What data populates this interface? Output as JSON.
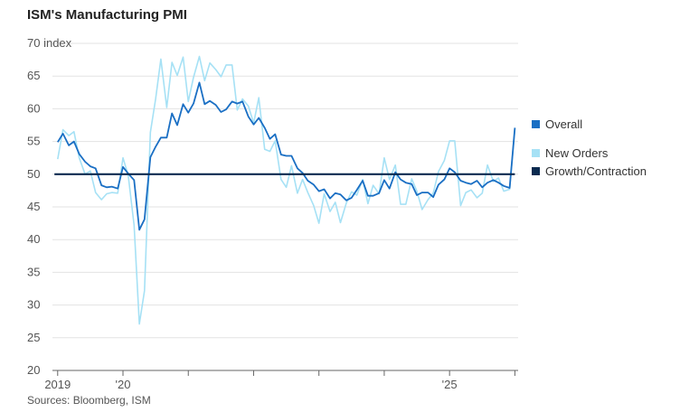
{
  "chart_data": {
    "type": "line",
    "title": "ISM's Manufacturing PMI",
    "source": "Sources: Bloomberg, ISM",
    "ylabel": "index",
    "ylim": [
      20,
      70
    ],
    "yticks": [
      20,
      25,
      30,
      35,
      40,
      45,
      50,
      55,
      60,
      65,
      70
    ],
    "xlim": [
      2018.92,
      2026.05
    ],
    "xticks": [
      {
        "x": 2019.0,
        "label": "2019"
      },
      {
        "x": 2020.0,
        "label": "'20"
      },
      {
        "x": 2021.0,
        "label": ""
      },
      {
        "x": 2022.0,
        "label": ""
      },
      {
        "x": 2023.0,
        "label": ""
      },
      {
        "x": 2024.0,
        "label": ""
      },
      {
        "x": 2025.0,
        "label": "'25"
      },
      {
        "x": 2026.0,
        "label": ""
      }
    ],
    "grid": true,
    "legend_position": "right",
    "series": [
      {
        "name": "New Orders",
        "color": "#a6e1f5",
        "x": [
          2019.0,
          2019.08,
          2019.17,
          2019.25,
          2019.33,
          2019.42,
          2019.5,
          2019.58,
          2019.67,
          2019.75,
          2019.83,
          2019.92,
          2020.0,
          2020.08,
          2020.17,
          2020.25,
          2020.33,
          2020.42,
          2020.5,
          2020.58,
          2020.67,
          2020.75,
          2020.83,
          2020.92,
          2021.0,
          2021.08,
          2021.17,
          2021.25,
          2021.33,
          2021.42,
          2021.5,
          2021.58,
          2021.67,
          2021.75,
          2021.83,
          2021.92,
          2022.0,
          2022.08,
          2022.17,
          2022.25,
          2022.33,
          2022.42,
          2022.5,
          2022.58,
          2022.67,
          2022.75,
          2022.83,
          2022.92,
          2023.0,
          2023.08,
          2023.17,
          2023.25,
          2023.33,
          2023.42,
          2023.5,
          2023.58,
          2023.67,
          2023.75,
          2023.83,
          2023.92,
          2024.0,
          2024.08,
          2024.17,
          2024.25,
          2024.33,
          2024.42,
          2024.5,
          2024.58,
          2024.67,
          2024.75,
          2024.83,
          2024.92,
          2025.0,
          2025.08,
          2025.17,
          2025.25,
          2025.33,
          2025.42,
          2025.5,
          2025.58,
          2025.67,
          2025.75,
          2025.83,
          2025.92,
          2026.0
        ],
        "values": [
          52.3,
          56.8,
          55.9,
          56.5,
          52.5,
          50.0,
          50.5,
          47.2,
          46.1,
          47.0,
          47.2,
          47.1,
          52.5,
          49.8,
          42.2,
          27.1,
          32.2,
          56.4,
          61.5,
          67.6,
          60.2,
          67.1,
          65.1,
          67.9,
          61.1,
          64.8,
          68.0,
          64.3,
          67.0,
          66.0,
          64.9,
          66.7,
          66.7,
          59.8,
          61.5,
          60.4,
          57.8,
          61.7,
          53.8,
          53.5,
          55.1,
          49.2,
          48.0,
          51.3,
          47.1,
          49.2,
          47.2,
          45.2,
          42.5,
          47.0,
          44.3,
          45.7,
          42.6,
          45.6,
          47.3,
          46.8,
          49.2,
          45.5,
          48.3,
          47.0,
          52.5,
          49.2,
          51.4,
          45.4,
          45.4,
          49.3,
          47.4,
          44.6,
          46.1,
          47.1,
          50.4,
          52.1,
          55.1,
          55.1,
          45.2,
          47.2,
          47.6,
          46.4,
          47.1,
          51.4,
          48.9,
          49.4,
          47.4,
          47.7,
          57.1
        ]
      },
      {
        "name": "Overall",
        "color": "#1a6fc4",
        "x": [
          2019.0,
          2019.08,
          2019.17,
          2019.25,
          2019.33,
          2019.42,
          2019.5,
          2019.58,
          2019.67,
          2019.75,
          2019.83,
          2019.92,
          2020.0,
          2020.08,
          2020.17,
          2020.25,
          2020.33,
          2020.42,
          2020.5,
          2020.58,
          2020.67,
          2020.75,
          2020.83,
          2020.92,
          2021.0,
          2021.08,
          2021.17,
          2021.25,
          2021.33,
          2021.42,
          2021.5,
          2021.58,
          2021.67,
          2021.75,
          2021.83,
          2021.92,
          2022.0,
          2022.08,
          2022.17,
          2022.25,
          2022.33,
          2022.42,
          2022.5,
          2022.58,
          2022.67,
          2022.75,
          2022.83,
          2022.92,
          2023.0,
          2023.08,
          2023.17,
          2023.25,
          2023.33,
          2023.42,
          2023.5,
          2023.58,
          2023.67,
          2023.75,
          2023.83,
          2023.92,
          2024.0,
          2024.08,
          2024.17,
          2024.25,
          2024.33,
          2024.42,
          2024.5,
          2024.58,
          2024.67,
          2024.75,
          2024.83,
          2024.92,
          2025.0,
          2025.08,
          2025.17,
          2025.25,
          2025.33,
          2025.42,
          2025.5,
          2025.58,
          2025.67,
          2025.75,
          2025.83,
          2025.92,
          2026.0
        ],
        "values": [
          54.9,
          56.2,
          54.4,
          55.0,
          53.1,
          51.9,
          51.2,
          50.9,
          48.3,
          48.0,
          48.1,
          47.8,
          51.1,
          50.1,
          49.1,
          41.5,
          43.1,
          52.6,
          54.2,
          55.6,
          55.6,
          59.3,
          57.5,
          60.7,
          59.4,
          60.8,
          64.0,
          60.7,
          61.2,
          60.6,
          59.5,
          59.9,
          61.1,
          60.8,
          61.1,
          58.8,
          57.6,
          58.6,
          57.1,
          55.4,
          56.1,
          53.0,
          52.8,
          52.8,
          50.9,
          50.2,
          49.0,
          48.4,
          47.4,
          47.7,
          46.3,
          47.1,
          46.9,
          46.0,
          46.4,
          47.6,
          49.0,
          46.7,
          46.7,
          47.1,
          49.1,
          47.8,
          50.3,
          49.2,
          48.7,
          48.5,
          46.8,
          47.2,
          47.2,
          46.5,
          48.4,
          49.2,
          50.9,
          50.3,
          49.0,
          48.7,
          48.5,
          49.0,
          48.0,
          48.7,
          49.1,
          48.7,
          48.2,
          47.9,
          57.1
        ]
      },
      {
        "name": "Growth/Contraction",
        "color": "#0a2a4f",
        "x": [
          2018.95,
          2026.0
        ],
        "values": [
          50,
          50
        ]
      }
    ],
    "legend": [
      {
        "name": "Overall",
        "color": "#1a6fc4"
      },
      {
        "name": "New Orders",
        "color": "#a6e1f5"
      },
      {
        "name": "Growth/Contraction",
        "color": "#0a2a4f"
      }
    ]
  }
}
